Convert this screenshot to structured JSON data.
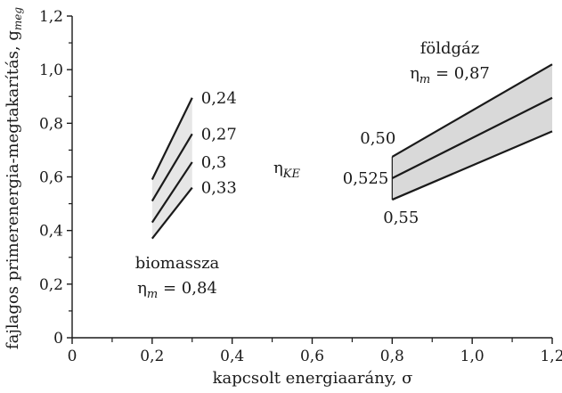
{
  "chart_data": {
    "type": "line",
    "xlabel": "kapcsolt energiaarány, σ",
    "ylabel_main": "fajlagos primerenergia-megtakarítás, g",
    "ylabel_sub": "meg",
    "xlim": [
      0,
      1.2
    ],
    "ylim": [
      0,
      1.2
    ],
    "x_ticks": [
      0,
      0.2,
      0.4,
      0.6,
      0.8,
      1.0,
      1.2
    ],
    "x_tick_labels": [
      "0",
      "0,2",
      "0,4",
      "0,6",
      "0,8",
      "1,0",
      "1,2"
    ],
    "y_ticks": [
      0,
      0.2,
      0.4,
      0.6,
      0.8,
      1.0,
      1.2
    ],
    "y_tick_labels": [
      "0",
      "0,2",
      "0,4",
      "0,6",
      "0,8",
      "1,0",
      "1,2"
    ],
    "grid": false,
    "center_label_main": "η",
    "center_label_sub": "KE",
    "groups": [
      {
        "name": "biomassza",
        "eta_label_main": "η",
        "eta_label_sub": "m",
        "eta_label_value": " = 0,84",
        "fill_color": "#e6e6e6",
        "series": [
          {
            "label": "0,24",
            "x": [
              0.2,
              0.3
            ],
            "y": [
              0.59,
              0.895
            ]
          },
          {
            "label": "0,27",
            "x": [
              0.2,
              0.3
            ],
            "y": [
              0.51,
              0.76
            ]
          },
          {
            "label": "0,3",
            "x": [
              0.2,
              0.3
            ],
            "y": [
              0.43,
              0.655
            ]
          },
          {
            "label": "0,33",
            "x": [
              0.2,
              0.3
            ],
            "y": [
              0.37,
              0.56
            ]
          }
        ]
      },
      {
        "name": "földgáz",
        "eta_label_main": "η",
        "eta_label_sub": "m",
        "eta_label_value": " = 0,87",
        "fill_color": "#d9d9d9",
        "series": [
          {
            "label": "0,50",
            "x": [
              0.8,
              1.2
            ],
            "y": [
              0.675,
              1.02
            ]
          },
          {
            "label": "0,525",
            "x": [
              0.8,
              1.2
            ],
            "y": [
              0.595,
              0.895
            ]
          },
          {
            "label": "0,55",
            "x": [
              0.8,
              1.2
            ],
            "y": [
              0.515,
              0.77
            ]
          }
        ]
      }
    ]
  }
}
